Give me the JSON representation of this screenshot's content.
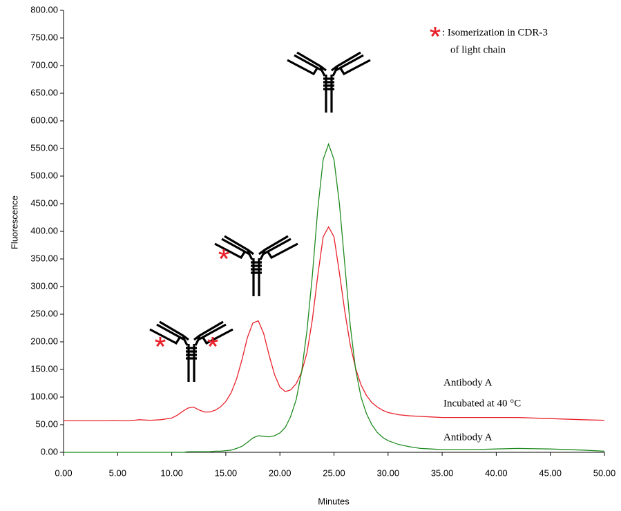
{
  "chart_data": {
    "type": "line",
    "x_label": "Minutes",
    "y_label": "Fluorescence",
    "xlim": [
      0,
      50
    ],
    "xticks": [
      {
        "value": 0,
        "label": "0.00"
      },
      {
        "value": 5,
        "label": "5.00"
      },
      {
        "value": 10,
        "label": "10.00"
      },
      {
        "value": 15,
        "label": "15.00"
      },
      {
        "value": 20,
        "label": "20.00"
      },
      {
        "value": 25,
        "label": "25.00"
      },
      {
        "value": 30,
        "label": "30.00"
      },
      {
        "value": 35,
        "label": "35.00"
      },
      {
        "value": 40,
        "label": "40.00"
      },
      {
        "value": 45,
        "label": "45.00"
      },
      {
        "value": 50,
        "label": "50.00"
      }
    ],
    "ylim": [
      0,
      800
    ],
    "yticks": [
      {
        "value": 0,
        "label": "0.00"
      },
      {
        "value": 50,
        "label": "50.00"
      },
      {
        "value": 100,
        "label": "100.00"
      },
      {
        "value": 150,
        "label": "150.00"
      },
      {
        "value": 200,
        "label": "200.00"
      },
      {
        "value": 250,
        "label": "250.00"
      },
      {
        "value": 300,
        "label": "300.00"
      },
      {
        "value": 350,
        "label": "350.00"
      },
      {
        "value": 400,
        "label": "400.00"
      },
      {
        "value": 450,
        "label": "450.00"
      },
      {
        "value": 500,
        "label": "500.00"
      },
      {
        "value": 550,
        "label": "550.00"
      },
      {
        "value": 600,
        "label": "600.00"
      },
      {
        "value": 650,
        "label": "650.00"
      },
      {
        "value": 700,
        "label": "700.00"
      },
      {
        "value": 750,
        "label": "750.00"
      },
      {
        "value": 800,
        "label": "800.00"
      }
    ],
    "x": [
      0,
      2,
      4,
      4.5,
      5,
      6,
      6.5,
      7,
      8,
      9,
      10,
      10.5,
      11,
      11.5,
      12,
      12.5,
      13,
      13.5,
      14,
      14.5,
      15,
      15.5,
      16,
      16.5,
      17,
      17.5,
      18,
      18.5,
      19,
      19.5,
      20,
      20.5,
      21,
      21.5,
      22,
      22.5,
      23,
      23.5,
      24,
      24.5,
      25,
      25.5,
      26,
      26.5,
      27,
      27.5,
      28,
      28.5,
      29,
      29.5,
      30,
      31,
      32,
      33,
      34,
      35,
      38,
      40,
      42,
      45,
      48,
      50
    ],
    "series": [
      {
        "color": "#e8202a",
        "values": [
          57,
          57,
          57,
          58,
          57,
          57,
          58,
          59,
          58,
          59,
          62,
          67,
          74,
          80,
          82,
          77,
          73,
          73,
          76,
          82,
          92,
          108,
          133,
          168,
          208,
          234,
          238,
          215,
          176,
          141,
          118,
          110,
          113,
          124,
          145,
          180,
          240,
          320,
          390,
          408,
          390,
          325,
          255,
          195,
          152,
          122,
          103,
          90,
          82,
          76,
          72,
          68,
          66,
          65,
          64,
          63,
          63,
          63,
          63,
          61,
          59,
          58
        ]
      },
      {
        "color": "#1f8a1f",
        "values": [
          0,
          0,
          0,
          0,
          0,
          0,
          0,
          0,
          0,
          0,
          0,
          0,
          0,
          1,
          1,
          1,
          1,
          1,
          2,
          2,
          3,
          4,
          7,
          11,
          18,
          26,
          30,
          29,
          28,
          30,
          35,
          45,
          65,
          95,
          145,
          220,
          320,
          440,
          530,
          558,
          530,
          450,
          340,
          230,
          150,
          100,
          70,
          50,
          36,
          27,
          21,
          14,
          10,
          7,
          6,
          5,
          5,
          6,
          7,
          6,
          4,
          2
        ]
      }
    ],
    "annotations": [
      "Antibody A",
      "Incubated at 40 °C",
      "Antibody A",
      ": Isomerization in CDR-3",
      "of light chain"
    ]
  }
}
